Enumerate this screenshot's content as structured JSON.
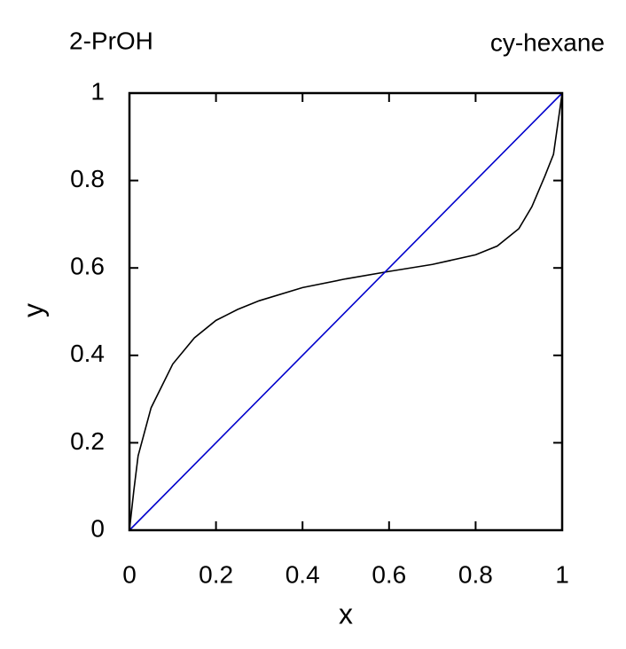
{
  "chart_data": {
    "type": "line",
    "annotations": [
      "2-PrOH",
      "cy-hexane"
    ],
    "xlabel": "x",
    "ylabel": "y",
    "xlim": [
      0,
      1
    ],
    "ylim": [
      0,
      1
    ],
    "xticks": [
      0,
      0.2,
      0.4,
      0.6,
      0.8,
      1
    ],
    "yticks": [
      0,
      0.2,
      0.4,
      0.6,
      0.8,
      1
    ],
    "series": [
      {
        "color": "#000000",
        "x": [
          0,
          0.01,
          0.02,
          0.05,
          0.1,
          0.15,
          0.2,
          0.25,
          0.3,
          0.4,
          0.5,
          0.6,
          0.7,
          0.8,
          0.85,
          0.9,
          0.93,
          0.96,
          0.98,
          0.99,
          1
        ],
        "values": [
          0,
          0.09,
          0.17,
          0.28,
          0.38,
          0.44,
          0.48,
          0.505,
          0.525,
          0.555,
          0.575,
          0.592,
          0.608,
          0.63,
          0.65,
          0.69,
          0.74,
          0.81,
          0.86,
          0.93,
          1
        ]
      },
      {
        "color": "#0000cc",
        "x": [
          0,
          1
        ],
        "values": [
          0,
          1
        ]
      }
    ]
  }
}
